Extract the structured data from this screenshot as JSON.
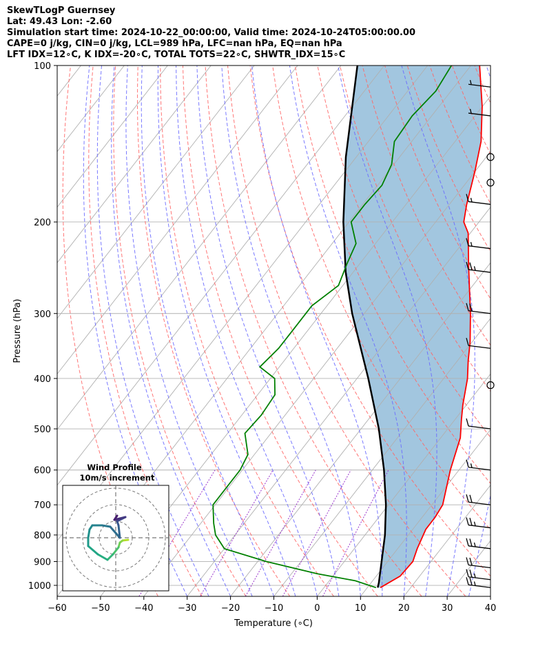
{
  "header": {
    "title": "SkewTLogP Guernsey",
    "location": "Lat: 49.43   Lon: -2.60",
    "times": "Simulation start time: 2024-10-22_00:00:00, Valid time: 2024-10-24T05:00:00.00",
    "indices1": "CAPE=0 j/kg, CIN=0 j/kg, LCL=989 hPa, LFC=nan hPa, EQ=nan hPa",
    "indices2": "LFT IDX=12∘C, K IDX=-20∘C, TOTAL TOTS=22∘C, SHWTR_IDX=15∘C"
  },
  "colors": {
    "temperature": "#ff0000",
    "dewpoint": "#008000",
    "parcel": "#000000",
    "cape_fill": "#a2c6df",
    "dry_adiabat": "#ff6666",
    "moist_adiabat": "#6a6aff",
    "mixing_ratio": "#9933cc",
    "isotherm": "#b0b0b0",
    "grid": "#b0b0b0"
  },
  "chart_data": {
    "type": "skew-t log-p",
    "xlabel": "Temperature (∘C)",
    "ylabel": "Pressure (hPa)",
    "xlim": [
      -60,
      40
    ],
    "ylim": [
      1050,
      100
    ],
    "x_ticks": [
      -60,
      -50,
      -40,
      -30,
      -20,
      -10,
      0,
      10,
      20,
      30,
      40
    ],
    "y_ticks": [
      100,
      200,
      300,
      400,
      500,
      600,
      700,
      800,
      900,
      1000
    ],
    "yscale": "log",
    "grid": true,
    "temperature_profile": [
      {
        "p": 1010,
        "t": 13.0
      },
      {
        "p": 960,
        "t": 15.5
      },
      {
        "p": 900,
        "t": 15.8
      },
      {
        "p": 850,
        "t": 14.5
      },
      {
        "p": 780,
        "t": 13.0
      },
      {
        "p": 740,
        "t": 13.0
      },
      {
        "p": 700,
        "t": 12.5
      },
      {
        "p": 600,
        "t": 8.0
      },
      {
        "p": 520,
        "t": 4.5
      },
      {
        "p": 480,
        "t": 1.5
      },
      {
        "p": 450,
        "t": -0.8
      },
      {
        "p": 400,
        "t": -4.5
      },
      {
        "p": 370,
        "t": -7.5
      },
      {
        "p": 340,
        "t": -10.5
      },
      {
        "p": 300,
        "t": -15.5
      },
      {
        "p": 270,
        "t": -20.0
      },
      {
        "p": 240,
        "t": -25.0
      },
      {
        "p": 210,
        "t": -30.5
      },
      {
        "p": 200,
        "t": -33.5
      },
      {
        "p": 185,
        "t": -36.0
      },
      {
        "p": 160,
        "t": -40.0
      },
      {
        "p": 140,
        "t": -44.0
      },
      {
        "p": 120,
        "t": -50.0
      },
      {
        "p": 100,
        "t": -58.0
      }
    ],
    "dewpoint_profile": [
      {
        "p": 1010,
        "t": 12.0
      },
      {
        "p": 980,
        "t": 6.0
      },
      {
        "p": 950,
        "t": -4.0
      },
      {
        "p": 900,
        "t": -18.0
      },
      {
        "p": 850,
        "t": -30.0
      },
      {
        "p": 800,
        "t": -34.5
      },
      {
        "p": 760,
        "t": -37.0
      },
      {
        "p": 700,
        "t": -40.5
      },
      {
        "p": 680,
        "t": -40.5
      },
      {
        "p": 600,
        "t": -40.5
      },
      {
        "p": 560,
        "t": -41.5
      },
      {
        "p": 510,
        "t": -46.0
      },
      {
        "p": 470,
        "t": -45.5
      },
      {
        "p": 430,
        "t": -46.0
      },
      {
        "p": 400,
        "t": -49.0
      },
      {
        "p": 380,
        "t": -54.5
      },
      {
        "p": 350,
        "t": -53.5
      },
      {
        "p": 320,
        "t": -53.5
      },
      {
        "p": 290,
        "t": -53.5
      },
      {
        "p": 265,
        "t": -51.0
      },
      {
        "p": 240,
        "t": -53.0
      },
      {
        "p": 220,
        "t": -54.5
      },
      {
        "p": 200,
        "t": -59.5
      },
      {
        "p": 185,
        "t": -59.5
      },
      {
        "p": 170,
        "t": -59.0
      },
      {
        "p": 155,
        "t": -60.5
      },
      {
        "p": 140,
        "t": -64.0
      },
      {
        "p": 125,
        "t": -64.5
      },
      {
        "p": 112,
        "t": -63.5
      },
      {
        "p": 100,
        "t": -64.5
      }
    ],
    "parcel_profile": [
      {
        "p": 1010,
        "t": 12.4
      },
      {
        "p": 989,
        "t": 11.8
      },
      {
        "p": 900,
        "t": 8.6
      },
      {
        "p": 800,
        "t": 4.6
      },
      {
        "p": 700,
        "t": -0.6
      },
      {
        "p": 600,
        "t": -7.3
      },
      {
        "p": 500,
        "t": -15.9
      },
      {
        "p": 400,
        "t": -27.4
      },
      {
        "p": 300,
        "t": -42.8
      },
      {
        "p": 250,
        "t": -51.7
      },
      {
        "p": 200,
        "t": -61.3
      },
      {
        "p": 150,
        "t": -72.4
      },
      {
        "p": 100,
        "t": -86.2
      }
    ],
    "wind_barbs": [
      {
        "p": 1010,
        "kt": 25
      },
      {
        "p": 975,
        "kt": 25
      },
      {
        "p": 925,
        "kt": 20
      },
      {
        "p": 850,
        "kt": 25
      },
      {
        "p": 775,
        "kt": 25
      },
      {
        "p": 700,
        "kt": 20
      },
      {
        "p": 600,
        "kt": 15
      },
      {
        "p": 500,
        "kt": 10
      },
      {
        "p": 412,
        "kt": 0
      },
      {
        "p": 350,
        "kt": 10
      },
      {
        "p": 300,
        "kt": 20
      },
      {
        "p": 250,
        "kt": 25
      },
      {
        "p": 225,
        "kt": 15
      },
      {
        "p": 185,
        "kt": 15
      },
      {
        "p": 168,
        "kt": 0
      },
      {
        "p": 150,
        "kt": 0
      },
      {
        "p": 125,
        "kt": 5
      },
      {
        "p": 110,
        "kt": 5
      }
    ],
    "inset": {
      "title": "Wind Profile",
      "subtitle": "10m/s increment",
      "rings": [
        10,
        20,
        30
      ]
    }
  }
}
